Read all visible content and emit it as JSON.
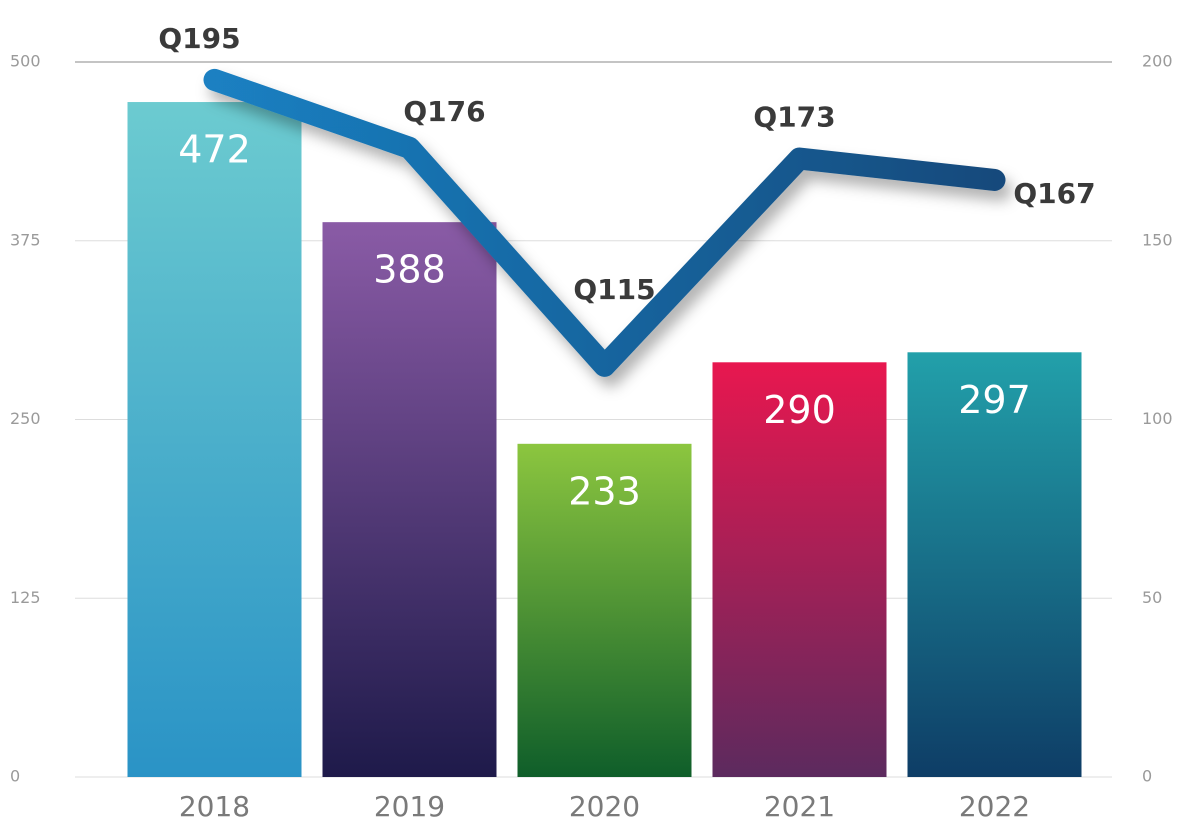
{
  "chart_data": {
    "type": "bar",
    "categories": [
      "2018",
      "2019",
      "2020",
      "2021",
      "2022"
    ],
    "series": [
      {
        "type": "bar",
        "values": [
          472,
          388,
          233,
          290,
          297
        ],
        "colors": [
          [
            "#6ccbd0",
            "#2a93c6"
          ],
          [
            "#8a5ba6",
            "#1e1a4a"
          ],
          [
            "#8cc63f",
            "#0f5e2a"
          ],
          [
            "#e8174f",
            "#5c2a5e"
          ],
          [
            "#22a0aa",
            "#0e3d66"
          ]
        ]
      },
      {
        "type": "line",
        "axis": "y2",
        "color": [
          "#1a80c2",
          "#154a7c"
        ],
        "values": [
          195,
          176,
          115,
          173,
          167
        ],
        "value_labels": [
          "Q195",
          "Q176",
          "Q115",
          "Q173",
          "Q167"
        ]
      }
    ],
    "ylim": [
      0,
      500
    ],
    "yticks": [
      0,
      125,
      250,
      375,
      500
    ],
    "y2lim": [
      0,
      200
    ],
    "y2ticks": [
      0,
      50,
      100,
      150,
      200
    ],
    "grid": true
  }
}
